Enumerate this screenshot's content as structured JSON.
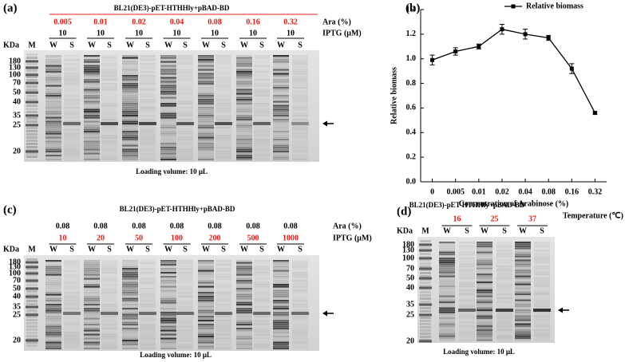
{
  "chart_data": {
    "type": "line",
    "panel_label": "(b)",
    "categories": [
      "0",
      "0.005",
      "0.01",
      "0.02",
      "0.04",
      "0.08",
      "0.16",
      "0.32"
    ],
    "series": [
      {
        "name": "Relative biomass",
        "color": "#000000",
        "values": [
          0.99,
          1.06,
          1.1,
          1.24,
          1.2,
          1.17,
          0.92,
          0.56
        ],
        "errors": [
          0.04,
          0.03,
          0.02,
          0.04,
          0.04,
          0.02,
          0.04,
          0.01
        ]
      }
    ],
    "ylim": [
      0,
      1.4
    ],
    "yticks": [
      {
        "value": 0,
        "label": "0.0"
      },
      0.2,
      0.4,
      0.6,
      0.8,
      {
        "value": 1,
        "label": "1.0"
      },
      1.2,
      1.4
    ],
    "xlabel": "Concentration of Arabinose (%)",
    "ylabel": "Relative biomass",
    "legend": "upper right"
  },
  "gels": [
    {
      "panel_label": "(a)",
      "title": "BL21(DE3)-pET-HTHHly+pBAD-BD",
      "row1": [
        "0.005",
        "0.01",
        "0.02",
        "0.04",
        "0.08",
        "0.16",
        "0.32"
      ],
      "row1_label": "Ara (%)",
      "row2": [
        "10",
        "10",
        "10",
        "10",
        "10",
        "10",
        "10"
      ],
      "row2_label": "IPTG (μM)",
      "kda": "KDa",
      "lanes": [
        "M",
        "W",
        "S",
        "W",
        "S",
        "W",
        "S",
        "W",
        "S",
        "W",
        "S",
        "W",
        "S",
        "W",
        "S"
      ],
      "markers": [
        "180",
        "130",
        "100",
        "70",
        "50",
        "40",
        "35",
        "25",
        "20"
      ],
      "footer": "Loading volume: 10 μL"
    },
    {
      "panel_label": "(c)",
      "title": "BL21(DE3)-pET-HTHHly+pBAD-BD",
      "row1": [
        "0.08",
        "0.08",
        "0.08",
        "0.08",
        "0.08",
        "0.08",
        "0.08"
      ],
      "row1_label": "Ara (%)",
      "row2": [
        "10",
        "20",
        "50",
        "100",
        "200",
        "500",
        "1000"
      ],
      "row2_label": "IPTG (μM)",
      "kda": "KDa",
      "lanes": [
        "M",
        "W",
        "S",
        "W",
        "S",
        "W",
        "S",
        "W",
        "S",
        "W",
        "S",
        "W",
        "S",
        "W",
        "S"
      ],
      "markers": [
        "180",
        "130",
        "100",
        "70",
        "50",
        "40",
        "35",
        "25",
        "20"
      ],
      "footer": "Loading volume: 10 μL"
    },
    {
      "panel_label": "(d)",
      "title": "BL21(DE3)-pET-HTHHly+pBAD-BD",
      "row1": [
        "16",
        "25",
        "37"
      ],
      "row1_label": "Temperature (℃)",
      "kda": "KDa",
      "lanes": [
        "M",
        "W",
        "S",
        "W",
        "S",
        "W",
        "S"
      ],
      "markers": [
        "180",
        "130",
        "100",
        "70",
        "50",
        "40",
        "35",
        "25",
        "20"
      ],
      "footer": "Loading volume: 10 μL"
    }
  ]
}
